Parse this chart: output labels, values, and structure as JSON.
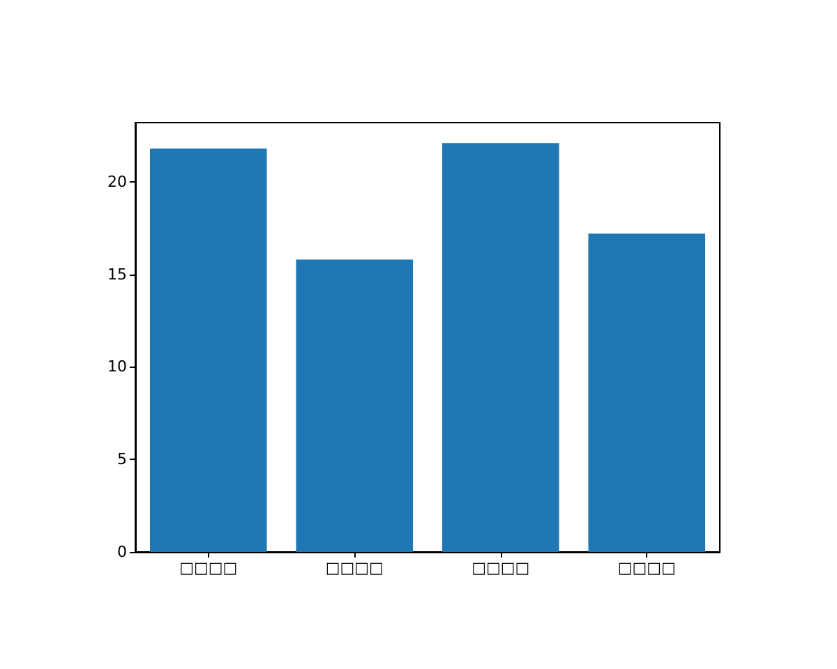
{
  "chart_data": {
    "type": "bar",
    "categories": [
      "□□□□",
      "□□□□",
      "□□□□",
      "□□□□"
    ],
    "values": [
      21.8,
      15.8,
      22.1,
      17.2
    ],
    "color": "#1f77b4",
    "ylim": [
      0,
      23.2
    ],
    "yticks": [
      0,
      5,
      10,
      15,
      20
    ]
  }
}
